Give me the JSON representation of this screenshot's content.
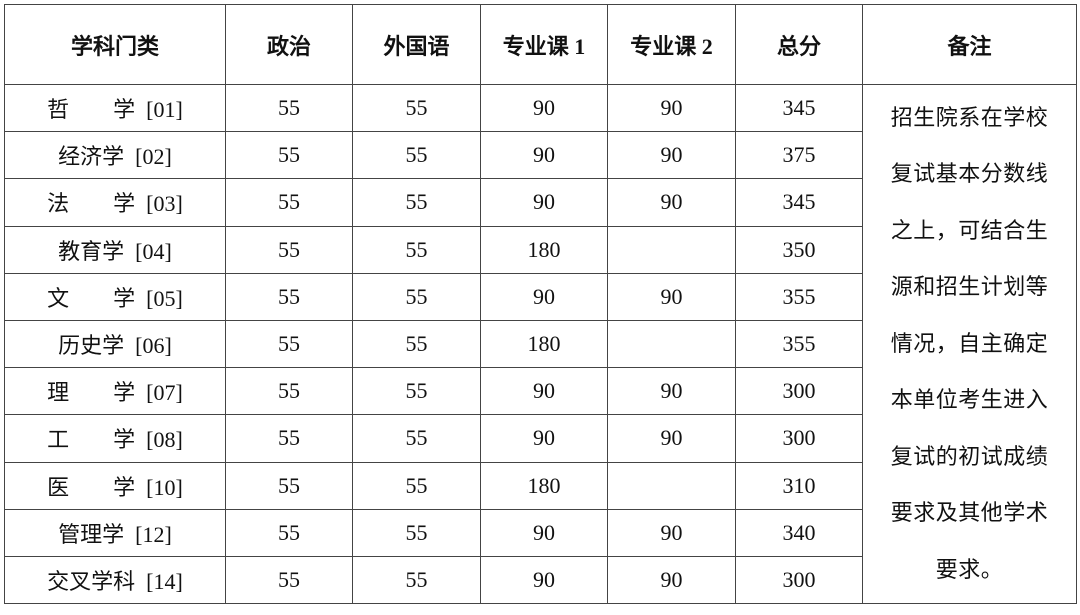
{
  "headers": [
    "学科门类",
    "政治",
    "外国语",
    "专业课 1",
    "专业课 2",
    "总分",
    "备注"
  ],
  "rows": [
    {
      "name": "哲　　学  [01]",
      "politics": "55",
      "language": "55",
      "major1": "90",
      "major2": "90",
      "total": "345"
    },
    {
      "name": "经济学  [02]",
      "politics": "55",
      "language": "55",
      "major1": "90",
      "major2": "90",
      "total": "375"
    },
    {
      "name": "法　　学  [03]",
      "politics": "55",
      "language": "55",
      "major1": "90",
      "major2": "90",
      "total": "345"
    },
    {
      "name": "教育学  [04]",
      "politics": "55",
      "language": "55",
      "major1": "180",
      "major2": "",
      "total": "350"
    },
    {
      "name": "文　　学  [05]",
      "politics": "55",
      "language": "55",
      "major1": "90",
      "major2": "90",
      "total": "355"
    },
    {
      "name": "历史学  [06]",
      "politics": "55",
      "language": "55",
      "major1": "180",
      "major2": "",
      "total": "355"
    },
    {
      "name": "理　　学  [07]",
      "politics": "55",
      "language": "55",
      "major1": "90",
      "major2": "90",
      "total": "300"
    },
    {
      "name": "工　　学  [08]",
      "politics": "55",
      "language": "55",
      "major1": "90",
      "major2": "90",
      "total": "300"
    },
    {
      "name": "医　　学  [10]",
      "politics": "55",
      "language": "55",
      "major1": "180",
      "major2": "",
      "total": "310"
    },
    {
      "name": "管理学  [12]",
      "politics": "55",
      "language": "55",
      "major1": "90",
      "major2": "90",
      "total": "340"
    },
    {
      "name": "交叉学科  [14]",
      "politics": "55",
      "language": "55",
      "major1": "90",
      "major2": "90",
      "total": "300"
    }
  ],
  "remark_lines": [
    "招生院系在学校",
    "复试基本分数线",
    "之上，可结合生",
    "源和招生计划等",
    "情况，自主确定",
    "本单位考生进入",
    "复试的初试成绩",
    "要求及其他学术",
    "要求。"
  ]
}
